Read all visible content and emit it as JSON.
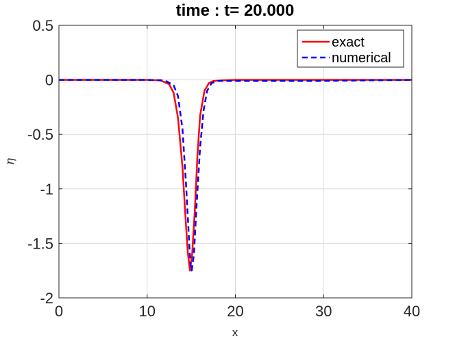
{
  "chart_data": {
    "type": "line",
    "title": "time : t= 20.000",
    "xlabel": "x",
    "ylabel": "η",
    "xlim": [
      0,
      40
    ],
    "ylim": [
      -2,
      0.5
    ],
    "xticks": [
      0,
      10,
      20,
      30,
      40
    ],
    "xtick_labels": [
      "0",
      "10",
      "20",
      "30",
      "40"
    ],
    "yticks": [
      0.5,
      0,
      -0.5,
      -1,
      -1.5,
      -2
    ],
    "ytick_labels": [
      "0.5",
      "0",
      "-0.5",
      "-1",
      "-1.5",
      "-2"
    ],
    "grid": true,
    "legend_position": "top-right",
    "series": [
      {
        "name": "exact",
        "color": "#ff0000",
        "style": "solid",
        "x": [
          0,
          5,
          10,
          11.5,
          12.5,
          13,
          13.5,
          14,
          14.3,
          14.6,
          14.85,
          15.1,
          15.4,
          15.7,
          16,
          16.5,
          17,
          17.5,
          18.5,
          20,
          25,
          30,
          35,
          40
        ],
        "y": [
          0,
          0,
          0,
          -0.005,
          -0.04,
          -0.12,
          -0.35,
          -0.8,
          -1.2,
          -1.58,
          -1.75,
          -1.6,
          -1.2,
          -0.7,
          -0.33,
          -0.1,
          -0.03,
          -0.01,
          -0.005,
          0,
          0,
          0,
          0,
          0
        ]
      },
      {
        "name": "numerical",
        "color": "#0000ff",
        "style": "dashed",
        "x": [
          0,
          5,
          10,
          12,
          13,
          13.5,
          14,
          14.4,
          14.7,
          14.9,
          15.05,
          15.3,
          15.6,
          16,
          16.4,
          16.8,
          17.3,
          18,
          20,
          25,
          30,
          35,
          40
        ],
        "y": [
          0,
          0,
          0,
          -0.005,
          -0.05,
          -0.15,
          -0.45,
          -0.95,
          -1.4,
          -1.68,
          -1.75,
          -1.6,
          -1.15,
          -0.62,
          -0.28,
          -0.1,
          -0.03,
          -0.01,
          -0.01,
          -0.01,
          -0.01,
          -0.005,
          0
        ]
      }
    ]
  }
}
